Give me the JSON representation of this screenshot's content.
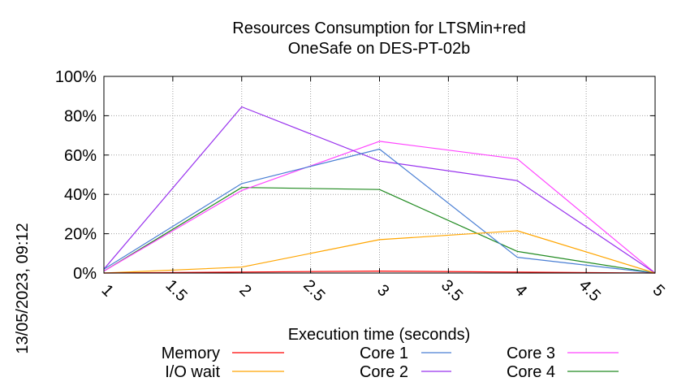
{
  "side_label": "13/05/2023, 09:12",
  "chart_data": {
    "type": "line",
    "title": "Resources Consumption for LTSMin+red",
    "subtitle": "OneSafe on DES-PT-02b",
    "xlabel": "Execution time (seconds)",
    "ylabel": "",
    "xlim": [
      1,
      5
    ],
    "ylim": [
      0,
      100
    ],
    "x_ticks": [
      "1",
      "1.5",
      "2",
      "2.5",
      "3",
      "3.5",
      "4",
      "4.5",
      "5"
    ],
    "x_tick_values": [
      1,
      1.5,
      2,
      2.5,
      3,
      3.5,
      4,
      4.5,
      5
    ],
    "y_ticks": [
      "0%",
      "20%",
      "40%",
      "60%",
      "80%",
      "100%"
    ],
    "y_tick_values": [
      0,
      20,
      40,
      60,
      80,
      100
    ],
    "grid": true,
    "legend_position": "bottom",
    "x": [
      1,
      2,
      3,
      4,
      5
    ],
    "series": [
      {
        "name": "Memory",
        "color": "#ff0000",
        "values": [
          0,
          0.5,
          1,
          0.5,
          0
        ]
      },
      {
        "name": "I/O wait",
        "color": "#ffa500",
        "values": [
          0,
          3,
          17,
          21.5,
          0
        ]
      },
      {
        "name": "Core 1",
        "color": "#4a7fd4",
        "values": [
          2,
          45.5,
          63,
          8,
          0
        ]
      },
      {
        "name": "Core 2",
        "color": "#9933ee",
        "values": [
          2,
          84.5,
          57,
          47,
          0
        ]
      },
      {
        "name": "Core 3",
        "color": "#ff44ff",
        "values": [
          1,
          42,
          67,
          58,
          0
        ]
      },
      {
        "name": "Core 4",
        "color": "#228b22",
        "values": [
          1,
          43.5,
          42.5,
          11,
          0
        ]
      }
    ]
  }
}
